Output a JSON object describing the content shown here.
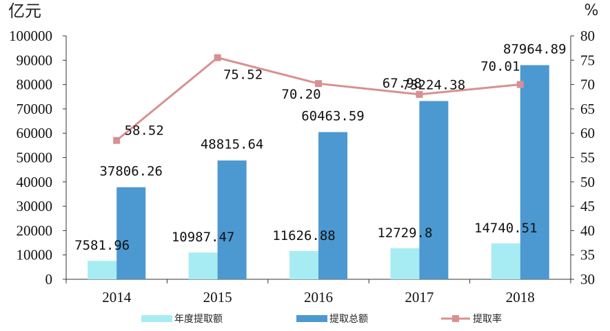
{
  "colors": {
    "annual_bar": "#a8ecf3",
    "total_bar": "#4c98d1",
    "line": "#d89092",
    "axis": "#333333",
    "text": "#111111"
  },
  "chart_data": {
    "type": "bar",
    "categories": [
      "2014",
      "2015",
      "2016",
      "2017",
      "2018"
    ],
    "left_axis": {
      "unit": "亿元",
      "ylim": [
        0,
        100000
      ],
      "ticks": [
        "0",
        "10000",
        "20000",
        "30000",
        "40000",
        "50000",
        "60000",
        "70000",
        "80000",
        "90000",
        "100000"
      ]
    },
    "right_axis": {
      "unit": "%",
      "ylim": [
        30,
        80
      ],
      "ticks": [
        "30",
        "35",
        "40",
        "45",
        "50",
        "55",
        "60",
        "65",
        "70",
        "75",
        "80"
      ]
    },
    "series": [
      {
        "name": "年度提取额",
        "type": "bar",
        "axis": "left",
        "values": [
          7581.96,
          10987.47,
          11626.88,
          12729.8,
          14740.51
        ],
        "labels": [
          "7581.96",
          "10987.47",
          "11626.88",
          "12729.8",
          "14740.51"
        ]
      },
      {
        "name": "提取总额",
        "type": "bar",
        "axis": "left",
        "values": [
          37806.26,
          48815.64,
          60463.59,
          73224.38,
          87964.89
        ],
        "labels": [
          "37806.26",
          "48815.64",
          "60463.59",
          "73224.38",
          "87964.89"
        ]
      },
      {
        "name": "提取率",
        "type": "line",
        "axis": "right",
        "values": [
          58.52,
          75.52,
          70.2,
          67.98,
          70.01
        ],
        "labels": [
          "58.52",
          "75.52",
          "70.20",
          "67.98",
          "70.01"
        ]
      }
    ],
    "grid": false,
    "legend_position": "bottom"
  }
}
